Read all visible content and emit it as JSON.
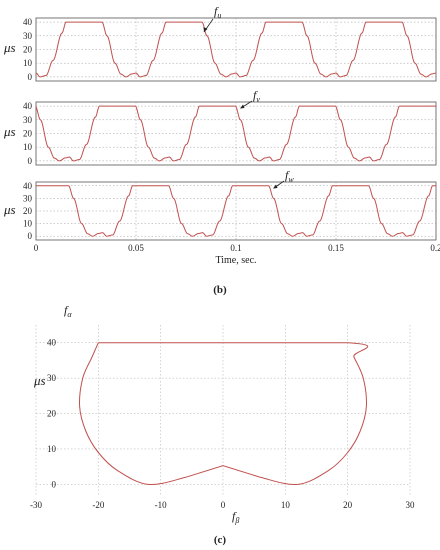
{
  "chart_data": [
    {
      "type": "line",
      "panel": "fu",
      "title": "",
      "ylabel": "μs",
      "annotation": "f_u",
      "annotation_main": "f",
      "annotation_sub": "u",
      "xlim": [
        0,
        0.2
      ],
      "ylim": [
        -3,
        43
      ],
      "yticks": [
        "0",
        "10",
        "20",
        "30",
        "40"
      ],
      "grid": true,
      "period": 0.05,
      "phase": 0.0,
      "series": [
        {
          "values_summary": "periodic trapezoid-like waveform between 0 and 40 μs"
        }
      ]
    },
    {
      "type": "line",
      "panel": "fv",
      "title": "",
      "ylabel": "μs",
      "annotation": "f_v",
      "annotation_main": "f",
      "annotation_sub": "v",
      "xlim": [
        0,
        0.2
      ],
      "ylim": [
        -3,
        43
      ],
      "yticks": [
        "0",
        "10",
        "20",
        "30",
        "40"
      ],
      "grid": true,
      "period": 0.05,
      "phase": 0.0167,
      "series": [
        {
          "values_summary": "periodic waveform shifted by 1/3 period"
        }
      ]
    },
    {
      "type": "line",
      "panel": "fw",
      "title": "",
      "ylabel": "μs",
      "annotation": "f_w",
      "annotation_main": "f",
      "annotation_sub": "w",
      "xlim": [
        0,
        0.2
      ],
      "ylim": [
        -3,
        43
      ],
      "yticks": [
        "0",
        "10",
        "20",
        "30",
        "40"
      ],
      "xticks": [
        "0",
        "0.05",
        "0.1",
        "0.15",
        "0.2"
      ],
      "xlabel": "Time, sec.",
      "grid": true,
      "period": 0.05,
      "phase": 0.0333,
      "series": [
        {
          "values_summary": "periodic waveform shifted by 2/3 period"
        }
      ]
    },
    {
      "type": "line",
      "panel": "alpha-beta",
      "title": "",
      "ylabel": "μs",
      "corner_label_main": "f",
      "corner_label_sub": "α",
      "xlabel_main": "f",
      "xlabel_sub": "β",
      "xlim": [
        -30,
        30
      ],
      "ylim": [
        -3,
        45
      ],
      "xticks": [
        "-30",
        "-20",
        "-10",
        "0",
        "10",
        "20",
        "30"
      ],
      "yticks": [
        "0",
        "10",
        "20",
        "30",
        "40"
      ],
      "grid": true,
      "x": [
        -20,
        20,
        21,
        22.5,
        23,
        22,
        20,
        17,
        12,
        6,
        0,
        -6,
        -12,
        -17,
        -20,
        -22,
        -23,
        -22.5,
        -21,
        -20
      ],
      "y": [
        40,
        40,
        36,
        30,
        22,
        15,
        9,
        4,
        0,
        2,
        5.3,
        2,
        0,
        4,
        9,
        15,
        22,
        30,
        36,
        40
      ]
    }
  ],
  "captions": {
    "b": "(b)",
    "c": "(c)"
  }
}
